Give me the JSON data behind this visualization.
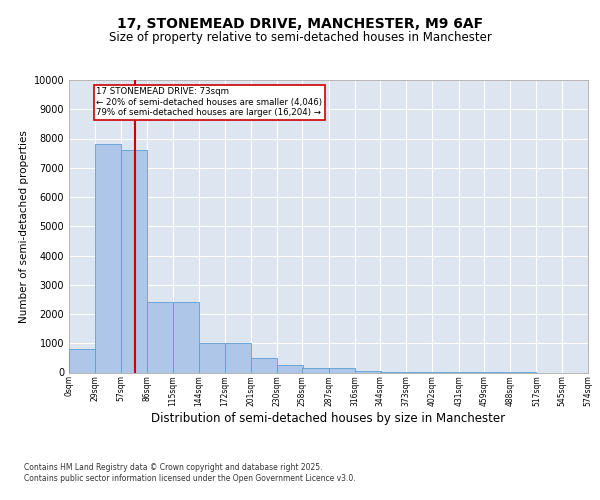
{
  "title1": "17, STONEMEAD DRIVE, MANCHESTER, M9 6AF",
  "title2": "Size of property relative to semi-detached houses in Manchester",
  "xlabel": "Distribution of semi-detached houses by size in Manchester",
  "ylabel": "Number of semi-detached properties",
  "bin_labels": [
    "0sqm",
    "29sqm",
    "57sqm",
    "86sqm",
    "115sqm",
    "144sqm",
    "172sqm",
    "201sqm",
    "230sqm",
    "258sqm",
    "287sqm",
    "316sqm",
    "344sqm",
    "373sqm",
    "402sqm",
    "431sqm",
    "459sqm",
    "488sqm",
    "517sqm",
    "545sqm",
    "574sqm"
  ],
  "bin_edges": [
    0,
    29,
    57,
    86,
    115,
    144,
    172,
    201,
    230,
    258,
    287,
    316,
    344,
    373,
    402,
    431,
    459,
    488,
    517,
    545,
    574
  ],
  "bar_heights": [
    800,
    7800,
    7600,
    2400,
    2400,
    1000,
    1000,
    500,
    250,
    150,
    150,
    50,
    20,
    10,
    5,
    3,
    2,
    1,
    0,
    0
  ],
  "bar_color": "#aec6e8",
  "bar_edge_color": "#5a9fd4",
  "property_size": 73,
  "property_label": "17 STONEMEAD DRIVE: 73sqm",
  "pct_smaller": 20,
  "n_smaller": 4046,
  "pct_larger": 79,
  "n_larger": 16204,
  "vline_color": "#cc0000",
  "annotation_box_color": "#cc0000",
  "ylim": [
    0,
    10000
  ],
  "yticks": [
    0,
    1000,
    2000,
    3000,
    4000,
    5000,
    6000,
    7000,
    8000,
    9000,
    10000
  ],
  "grid_color": "#cccccc",
  "bg_color": "#dde6f0",
  "footer1": "Contains HM Land Registry data © Crown copyright and database right 2025.",
  "footer2": "Contains public sector information licensed under the Open Government Licence v3.0.",
  "title1_fontsize": 10,
  "title2_fontsize": 8.5,
  "xlabel_fontsize": 8.5,
  "ylabel_fontsize": 7.5
}
